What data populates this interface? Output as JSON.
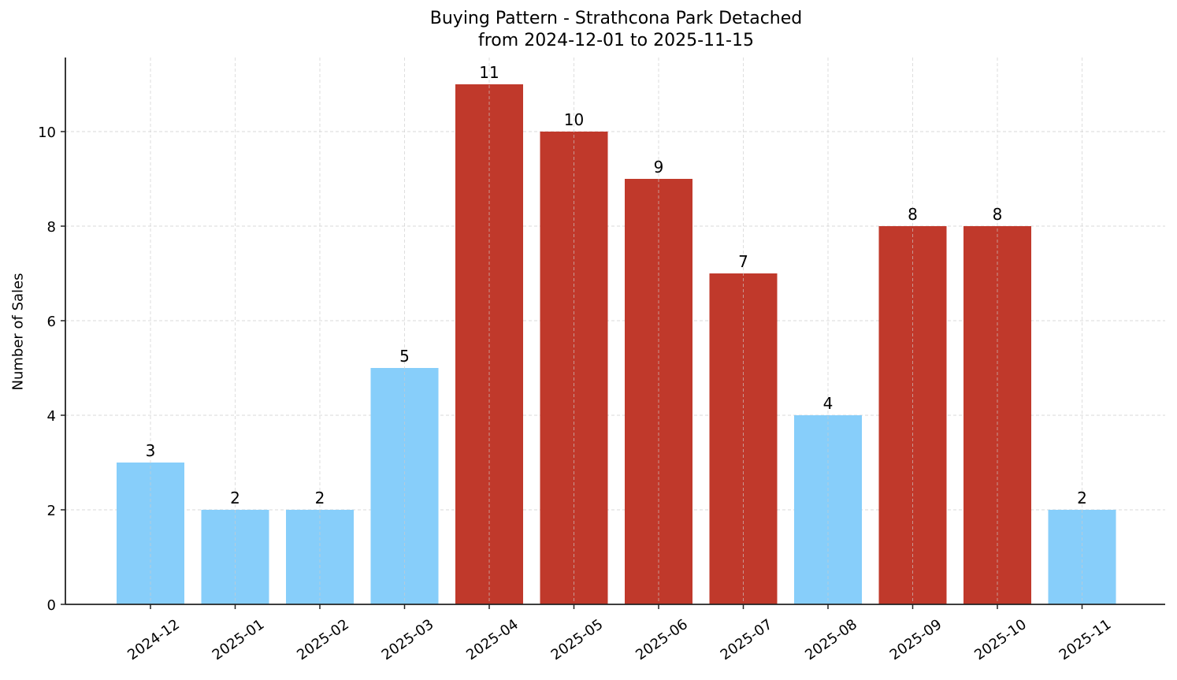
{
  "chart_data": {
    "type": "bar",
    "title": "Buying Pattern - Strathcona Park Detached",
    "subtitle": "from 2024-12-01 to 2025-11-15",
    "xlabel": "",
    "ylabel": "Number of Sales",
    "categories": [
      "2024-12",
      "2025-01",
      "2025-02",
      "2025-03",
      "2025-04",
      "2025-05",
      "2025-06",
      "2025-07",
      "2025-08",
      "2025-09",
      "2025-10",
      "2025-11"
    ],
    "values": [
      3,
      2,
      2,
      5,
      11,
      10,
      9,
      7,
      4,
      8,
      8,
      2
    ],
    "bar_colors": [
      "#87CEFA",
      "#87CEFA",
      "#87CEFA",
      "#87CEFA",
      "#C0392B",
      "#C0392B",
      "#C0392B",
      "#C0392B",
      "#87CEFA",
      "#C0392B",
      "#C0392B",
      "#87CEFA"
    ],
    "yticks": [
      0,
      2,
      4,
      6,
      8,
      10
    ],
    "ylim": [
      0,
      11.55
    ],
    "grid": true,
    "data_labels": true,
    "legend": null
  },
  "colors": {
    "low": "#87CEFA",
    "high": "#C0392B",
    "grid": "#cccccc",
    "axis": "#222222"
  }
}
